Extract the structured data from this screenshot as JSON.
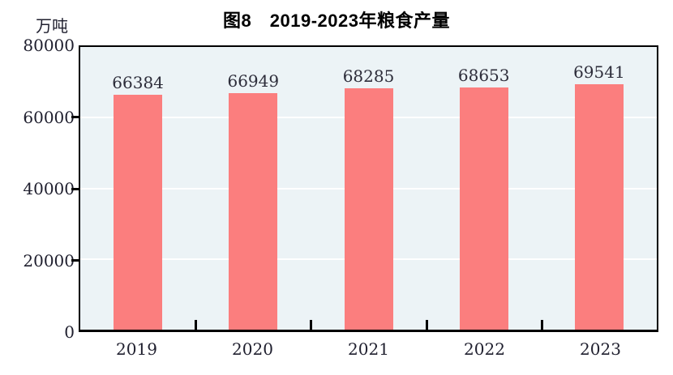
{
  "chart_data": {
    "type": "bar",
    "title": "图8　2019-2023年粮食产量",
    "unit_label": "万吨",
    "categories": [
      "2019",
      "2020",
      "2021",
      "2022",
      "2023"
    ],
    "values": [
      66384,
      66949,
      68285,
      68653,
      69541
    ],
    "ylim": [
      0,
      80000
    ],
    "yticks": [
      0,
      20000,
      40000,
      60000,
      80000
    ],
    "grid": true,
    "legend_position": "none",
    "colors": {
      "bar": "#fb7e7e",
      "plot_background": "#ecf3f6",
      "gridline": "#ffffff",
      "axis": "#000000",
      "text": "#2d2d3a"
    }
  }
}
